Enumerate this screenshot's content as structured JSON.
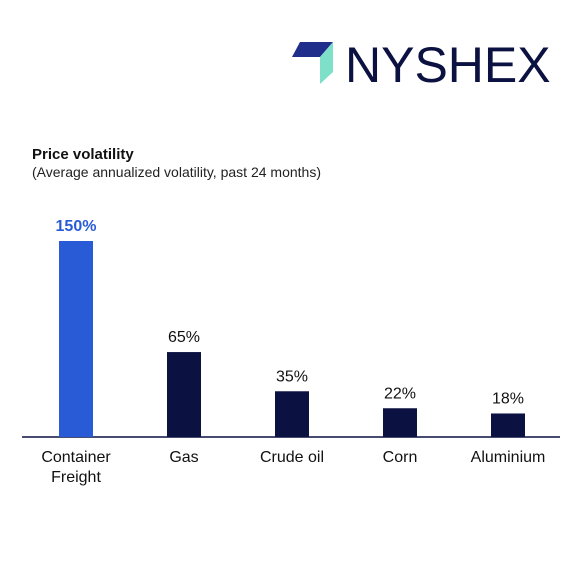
{
  "logo": {
    "text": "NYSHEX"
  },
  "chart_data": {
    "type": "bar",
    "title": "Price volatility",
    "subtitle": "(Average annualized volatility, past 24 months)",
    "categories": [
      "Container Freight",
      "Gas",
      "Crude oil",
      "Corn",
      "Aluminium"
    ],
    "values": [
      150,
      65,
      35,
      22,
      18
    ],
    "value_labels": [
      "150%",
      "65%",
      "35%",
      "22%",
      "18%"
    ],
    "colors": [
      "#2a5bd7",
      "#0b1140",
      "#0b1140",
      "#0b1140",
      "#0b1140"
    ],
    "label_colors": [
      "#2a5bd7",
      "#111111",
      "#111111",
      "#111111",
      "#111111"
    ]
  }
}
